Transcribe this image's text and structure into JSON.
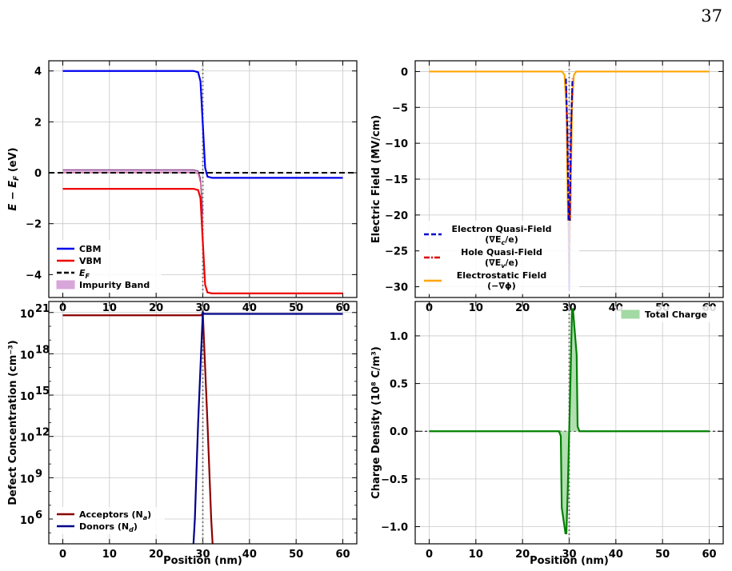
{
  "page_number": "37",
  "colors": {
    "cbm": "#0000ee",
    "vbm": "#ee0000",
    "fermi": "#000000",
    "impurity": "#cc66cc",
    "impurity_fill": "#d9a6d9",
    "acceptors": "#8b0000",
    "donors": "#00008b",
    "electrostatic": "#ffa500",
    "electron_qf": "#0000cc",
    "hole_qf": "#dd0000",
    "charge": "#008000",
    "charge_fill": "#a3d9a3",
    "grid": "#c8c8c8",
    "marker": "#808080"
  },
  "chart_data": [
    {
      "id": "band",
      "type": "line",
      "xlabel": "",
      "ylabel": "E − E_F (eV)",
      "xlim": [
        -3,
        63
      ],
      "ylim": [
        -4.9,
        4.4
      ],
      "xticks": [
        0,
        10,
        20,
        30,
        40,
        50,
        60
      ],
      "yticks": [
        4,
        2,
        0,
        -2,
        -4
      ],
      "ytick_labels": [
        "4",
        "2",
        "0",
        "−2",
        "−4"
      ],
      "grid": true,
      "legend": "lower-left",
      "series": [
        {
          "name": "CBM",
          "x": [
            0,
            28,
            29,
            29.5,
            30,
            30.5,
            31,
            32,
            60
          ],
          "y": [
            4.0,
            4.0,
            3.95,
            3.6,
            1.9,
            0.2,
            -0.15,
            -0.2,
            -0.2
          ]
        },
        {
          "name": "VBM",
          "x": [
            0,
            28,
            29,
            29.5,
            30,
            30.5,
            31,
            32,
            60
          ],
          "y": [
            -0.63,
            -0.63,
            -0.68,
            -1.0,
            -2.7,
            -4.4,
            -4.7,
            -4.74,
            -4.74
          ]
        },
        {
          "name": "E_F",
          "x": [
            -3,
            63
          ],
          "y": [
            0,
            0
          ]
        },
        {
          "name": "Impurity Band",
          "x": [
            0,
            28,
            29,
            29.5,
            30
          ],
          "y_upper": [
            0.12,
            0.12,
            0.07,
            -0.2,
            -1.6
          ],
          "y_lower": [
            0.0,
            0.0,
            -0.03,
            -0.4,
            -2.0
          ]
        }
      ]
    },
    {
      "id": "field",
      "type": "line",
      "xlabel": "",
      "ylabel": "Electric Field (MV/cm)",
      "xlim": [
        -3,
        63
      ],
      "ylim": [
        -31.5,
        1.5
      ],
      "xticks": [
        0,
        10,
        20,
        30,
        40,
        50,
        60
      ],
      "yticks": [
        0,
        -5,
        -10,
        -15,
        -20,
        -25,
        -30
      ],
      "ytick_labels": [
        "0",
        "−5",
        "−10",
        "−15",
        "−20",
        "−25",
        "−30"
      ],
      "grid": true,
      "legend": "lower-left",
      "series": [
        {
          "name": "Electron Quasi-Field (∇E_c/e)",
          "x": [
            29.3,
            29.6,
            29.9,
            30.0,
            30.1,
            30.4,
            30.7
          ],
          "y": [
            -1,
            -8,
            -22,
            -30.6,
            -22,
            -8,
            -1
          ]
        },
        {
          "name": "Hole Quasi-Field (∇E_v/e)",
          "x": [
            29.3,
            29.6,
            29.9,
            30.0,
            30.1,
            30.4,
            30.7
          ],
          "y": [
            -1,
            -8,
            -22,
            -29.8,
            -22,
            -8,
            -1
          ]
        },
        {
          "name": "Electrostatic Field (−∇ϕ)",
          "x": [
            0,
            28.5,
            29,
            29.4,
            29.7,
            30.0,
            30.3,
            30.6,
            31,
            31.5,
            60
          ],
          "y": [
            0,
            0,
            -0.5,
            -5,
            -18,
            -29.5,
            -18,
            -5,
            -0.5,
            0,
            0
          ]
        }
      ]
    },
    {
      "id": "defects",
      "type": "line",
      "xlabel": "Position (nm)",
      "ylabel": "Defect Concentration (cm⁻³)",
      "xlim": [
        -3,
        63
      ],
      "yscale": "log",
      "ylim_log10": [
        4.2,
        21.8
      ],
      "xticks": [
        0,
        10,
        20,
        30,
        40,
        50,
        60
      ],
      "yticks_log10": [
        21,
        18,
        15,
        12,
        9,
        6
      ],
      "ytick_labels": [
        "10",
        "10",
        "10",
        "10",
        "10",
        "10"
      ],
      "ytick_exponents": [
        "21",
        "18",
        "15",
        "12",
        "9",
        "6"
      ],
      "grid": true,
      "legend": "lower-left",
      "series": [
        {
          "name": "Acceptors (N_a)",
          "x": [
            0,
            29.7,
            30.0,
            31.0,
            31.8,
            32.1
          ],
          "log10_y": [
            20.8,
            20.8,
            21.0,
            13.0,
            6.0,
            4.2
          ]
        },
        {
          "name": "Donors (N_d)",
          "x": [
            28.0,
            28.3,
            29.0,
            30.0,
            30.3,
            60
          ],
          "log10_y": [
            4.2,
            6.0,
            13.0,
            21.0,
            20.9,
            20.9
          ]
        }
      ]
    },
    {
      "id": "charge",
      "type": "area",
      "xlabel": "Position (nm)",
      "ylabel": "Charge Density (10⁸ C/m³)",
      "xlim": [
        -3,
        63
      ],
      "ylim": [
        -1.18,
        1.36
      ],
      "xticks": [
        0,
        10,
        20,
        30,
        40,
        50,
        60
      ],
      "yticks": [
        1.0,
        0.5,
        0.0,
        -0.5,
        -1.0
      ],
      "ytick_labels": [
        "1.0",
        "0.5",
        "0.0",
        "−0.5",
        "−1.0"
      ],
      "grid": true,
      "legend": "top-right",
      "series": [
        {
          "name": "Total Charge",
          "x": [
            0,
            27.8,
            28.2,
            28.4,
            29.2,
            29.4,
            29.7,
            30.0,
            30.3,
            30.6,
            30.8,
            31.6,
            31.8,
            32.2,
            60
          ],
          "y": [
            0,
            0,
            -0.05,
            -0.8,
            -1.07,
            -1.07,
            -0.6,
            0,
            0.6,
            1.28,
            1.28,
            0.8,
            0.05,
            0,
            0
          ]
        }
      ]
    }
  ],
  "legends": {
    "band": [
      {
        "label": "CBM",
        "style": "line",
        "color_key": "cbm"
      },
      {
        "label": "VBM",
        "style": "line",
        "color_key": "vbm"
      },
      {
        "label": "E",
        "sub": "F",
        "style": "dashed",
        "color_key": "fermi"
      },
      {
        "label": "Impurity Band",
        "style": "patch",
        "color_key": "impurity_fill"
      }
    ],
    "field": [
      {
        "label": "Electron Quasi-Field",
        "label2": "(∇E",
        "sub2": "c",
        "tail2": "/e)",
        "style": "dashed",
        "color_key": "electron_qf"
      },
      {
        "label": "Hole Quasi-Field",
        "label2": "(∇E",
        "sub2": "v",
        "tail2": "/e)",
        "style": "dashdot",
        "color_key": "hole_qf"
      },
      {
        "label": "Electrostatic Field",
        "label2": "(−∇ϕ)",
        "sub2": "",
        "tail2": "",
        "style": "line",
        "color_key": "electrostatic"
      }
    ],
    "defects": [
      {
        "label": "Acceptors (N",
        "sub": "a",
        "tail": ")",
        "style": "line",
        "color_key": "acceptors"
      },
      {
        "label": "Donors (N",
        "sub": "d",
        "tail": ")",
        "style": "line",
        "color_key": "donors"
      }
    ],
    "charge": [
      {
        "label": "Total Charge",
        "style": "patch",
        "color_key": "charge_fill"
      }
    ]
  }
}
